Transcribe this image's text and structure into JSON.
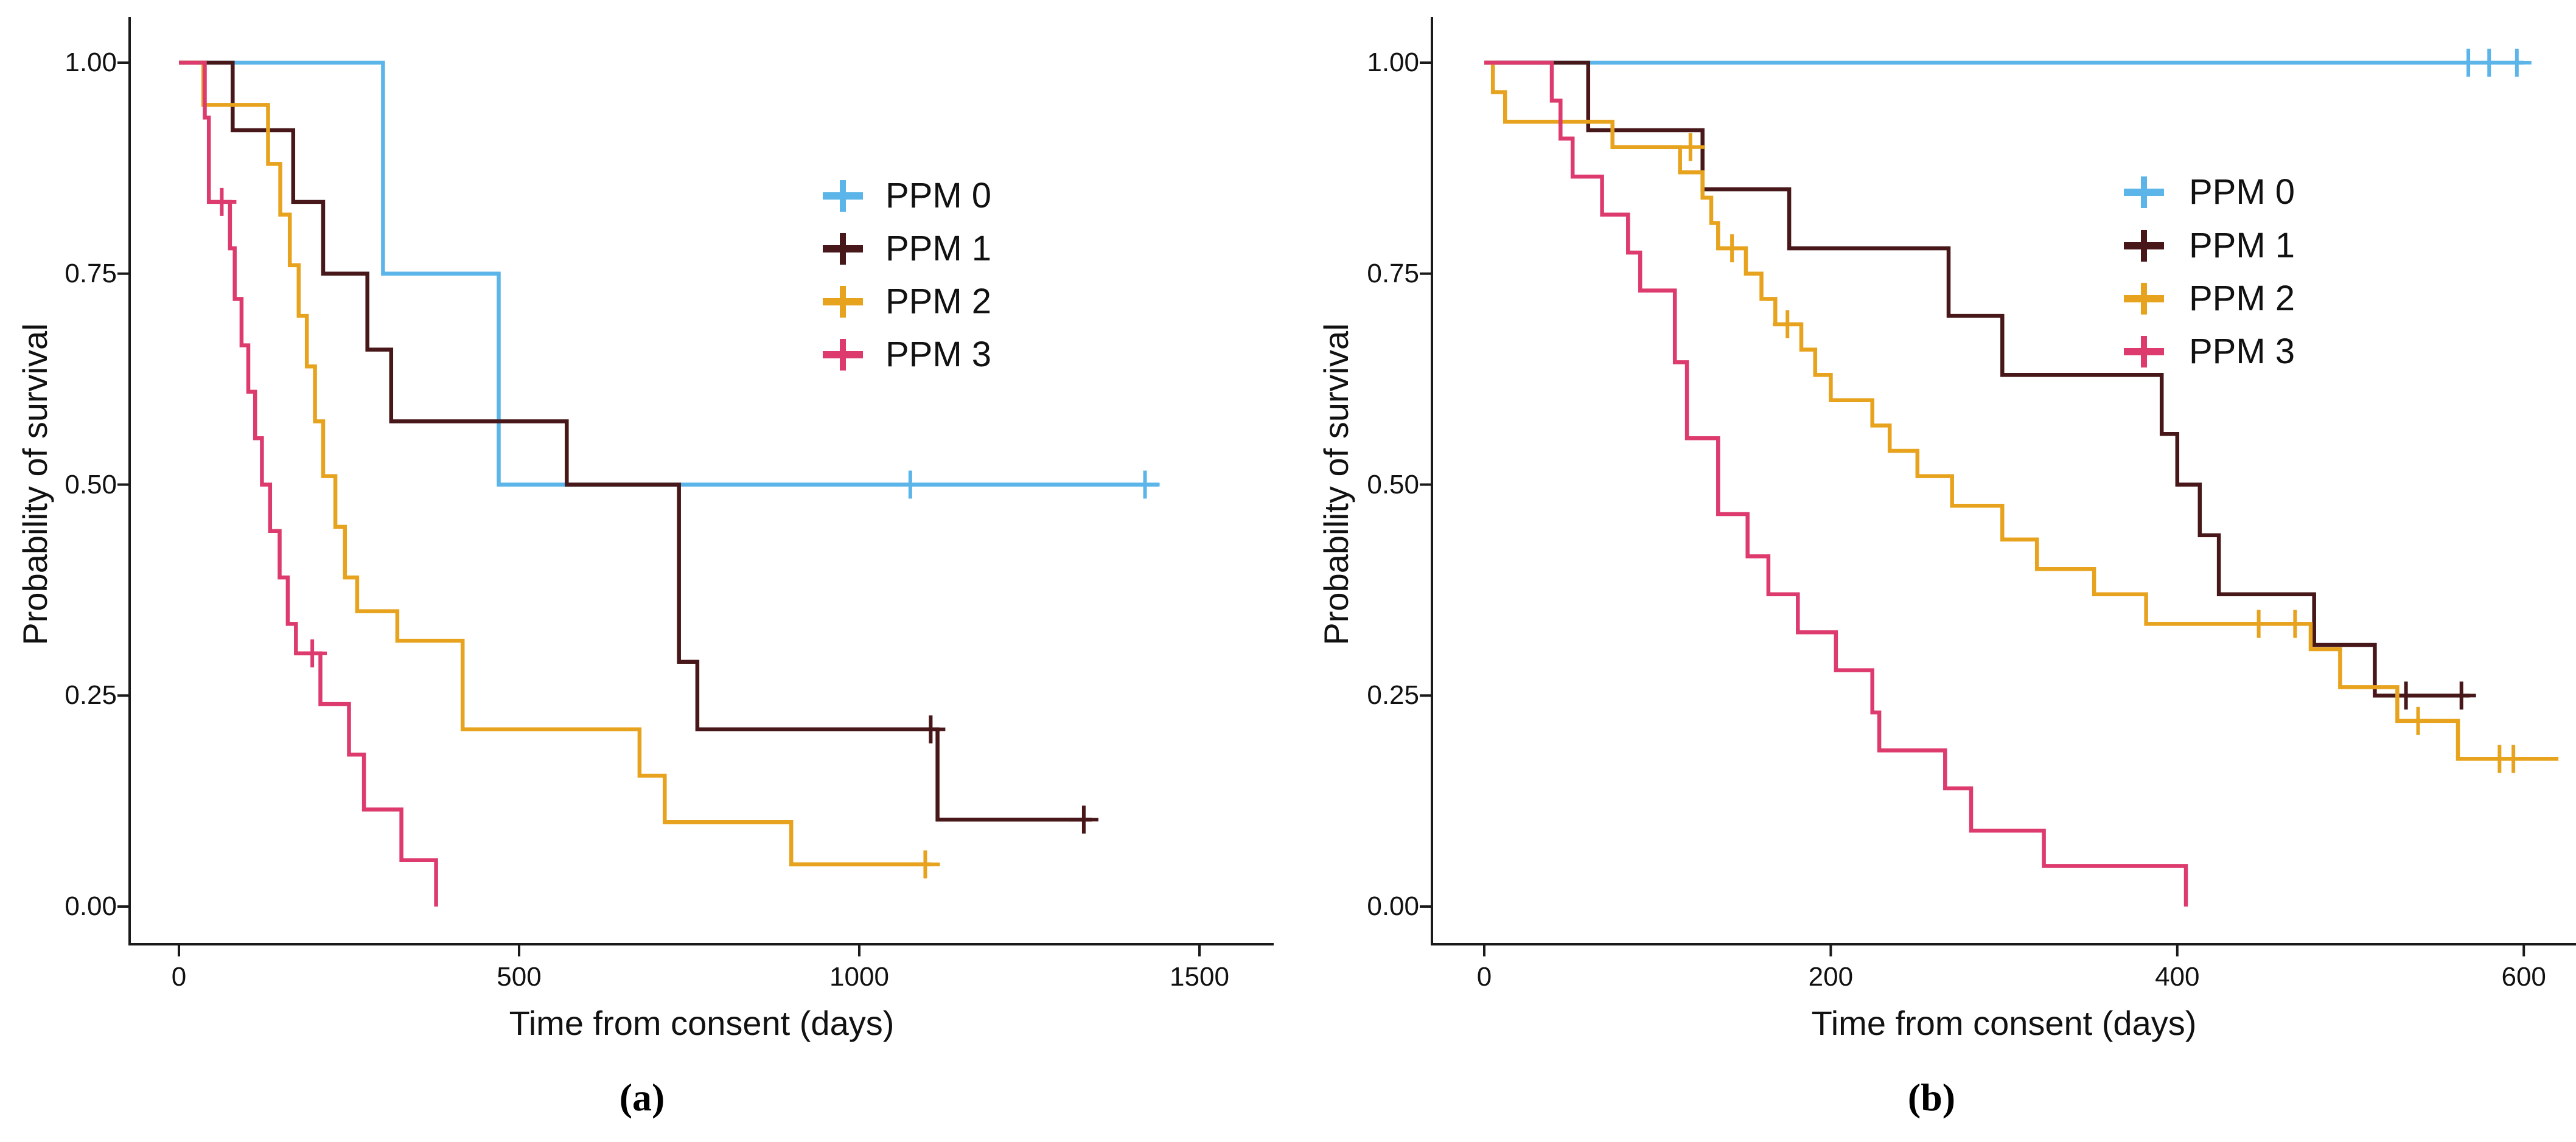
{
  "figure": {
    "captions": [
      "(a)",
      "(b)"
    ],
    "background": "#ffffff",
    "axis_color": "#1a1a1a"
  },
  "chart_data": [
    {
      "type": "line",
      "subtype": "kaplan-meier-step",
      "panel": "a",
      "xlabel": "Time from consent (days)",
      "ylabel": "Probability of survival",
      "xlim": [
        0,
        1600
      ],
      "ylim": [
        0,
        1
      ],
      "xticks": [
        0,
        500,
        1000,
        1500
      ],
      "yticks": [
        0,
        0.25,
        0.5,
        0.75,
        1
      ],
      "ytick_labels": [
        "0.00",
        "0.25",
        "0.50",
        "0.75",
        "1.00"
      ],
      "grid": false,
      "legend_position": "inside-top-right",
      "series": [
        {
          "name": "PPM 0",
          "color": "#5CB5E8",
          "steps": [
            [
              0,
              1
            ],
            [
              300,
              1
            ],
            [
              300,
              0.75
            ],
            [
              470,
              0.75
            ],
            [
              470,
              0.5
            ],
            [
              1440,
              0.5
            ]
          ],
          "censors": [
            [
              1075,
              0.5
            ],
            [
              1420,
              0.5
            ]
          ]
        },
        {
          "name": "PPM 1",
          "color": "#471719",
          "steps": [
            [
              0,
              1
            ],
            [
              79,
              1
            ],
            [
              79,
              0.92
            ],
            [
              168,
              0.92
            ],
            [
              168,
              0.835
            ],
            [
              212,
              0.835
            ],
            [
              212,
              0.75
            ],
            [
              277,
              0.75
            ],
            [
              277,
              0.66
            ],
            [
              312,
              0.66
            ],
            [
              312,
              0.575
            ],
            [
              570,
              0.575
            ],
            [
              570,
              0.5
            ],
            [
              735,
              0.5
            ],
            [
              735,
              0.29
            ],
            [
              762,
              0.29
            ],
            [
              762,
              0.21
            ],
            [
              1115,
              0.21
            ],
            [
              1115,
              0.103
            ],
            [
              1342,
              0.103
            ]
          ],
          "censors": [
            [
              1105,
              0.21
            ],
            [
              1330,
              0.103
            ]
          ]
        },
        {
          "name": "PPM 2",
          "color": "#E7A21E",
          "steps": [
            [
              0,
              1
            ],
            [
              36,
              1
            ],
            [
              36,
              0.95
            ],
            [
              131,
              0.95
            ],
            [
              131,
              0.88
            ],
            [
              149,
              0.88
            ],
            [
              149,
              0.82
            ],
            [
              163,
              0.82
            ],
            [
              163,
              0.76
            ],
            [
              176,
              0.76
            ],
            [
              176,
              0.7
            ],
            [
              188,
              0.7
            ],
            [
              188,
              0.64
            ],
            [
              200,
              0.64
            ],
            [
              200,
              0.575
            ],
            [
              212,
              0.575
            ],
            [
              212,
              0.51
            ],
            [
              230,
              0.51
            ],
            [
              230,
              0.45
            ],
            [
              244,
              0.45
            ],
            [
              244,
              0.39
            ],
            [
              262,
              0.39
            ],
            [
              262,
              0.35
            ],
            [
              321,
              0.35
            ],
            [
              321,
              0.315
            ],
            [
              417,
              0.315
            ],
            [
              417,
              0.21
            ],
            [
              677,
              0.21
            ],
            [
              677,
              0.155
            ],
            [
              714,
              0.155
            ],
            [
              714,
              0.1
            ],
            [
              900,
              0.1
            ],
            [
              900,
              0.05
            ],
            [
              1105,
              0.05
            ]
          ],
          "censors": [
            [
              1097,
              0.05
            ]
          ]
        },
        {
          "name": "PPM 3",
          "color": "#DD3A6E",
          "steps": [
            [
              0,
              1
            ],
            [
              38,
              1
            ],
            [
              38,
              0.935
            ],
            [
              44,
              0.935
            ],
            [
              44,
              0.835
            ],
            [
              75,
              0.835
            ],
            [
              75,
              0.78
            ],
            [
              82,
              0.78
            ],
            [
              82,
              0.72
            ],
            [
              92,
              0.72
            ],
            [
              92,
              0.665
            ],
            [
              102,
              0.665
            ],
            [
              102,
              0.61
            ],
            [
              112,
              0.61
            ],
            [
              112,
              0.555
            ],
            [
              122,
              0.555
            ],
            [
              122,
              0.5
            ],
            [
              134,
              0.5
            ],
            [
              134,
              0.445
            ],
            [
              148,
              0.445
            ],
            [
              148,
              0.39
            ],
            [
              160,
              0.39
            ],
            [
              160,
              0.335
            ],
            [
              172,
              0.335
            ],
            [
              172,
              0.3
            ],
            [
              208,
              0.3
            ],
            [
              208,
              0.24
            ],
            [
              250,
              0.24
            ],
            [
              250,
              0.18
            ],
            [
              272,
              0.18
            ],
            [
              272,
              0.115
            ],
            [
              327,
              0.115
            ],
            [
              327,
              0.055
            ],
            [
              378,
              0.055
            ],
            [
              378,
              0
            ]
          ],
          "censors": [
            [
              63,
              0.835
            ],
            [
              196,
              0.3
            ]
          ]
        }
      ]
    },
    {
      "type": "line",
      "subtype": "kaplan-meier-step",
      "panel": "b",
      "xlabel": "Time from consent (days)",
      "ylabel": "Probability of survival",
      "xlim": [
        0,
        640
      ],
      "ylim": [
        0,
        1
      ],
      "xticks": [
        0,
        200,
        400,
        600
      ],
      "yticks": [
        0,
        0.25,
        0.5,
        0.75,
        1
      ],
      "ytick_labels": [
        "0.00",
        "0.25",
        "0.50",
        "0.75",
        "1.00"
      ],
      "grid": false,
      "legend_position": "inside-top-right",
      "series": [
        {
          "name": "PPM 0",
          "color": "#5CB5E8",
          "steps": [
            [
              0,
              1
            ],
            [
              600,
              1
            ]
          ],
          "censors": [
            [
              568,
              1
            ],
            [
              580,
              1
            ],
            [
              596,
              1
            ]
          ]
        },
        {
          "name": "PPM 1",
          "color": "#471719",
          "steps": [
            [
              0,
              1
            ],
            [
              60,
              1
            ],
            [
              60,
              0.92
            ],
            [
              126,
              0.92
            ],
            [
              126,
              0.85
            ],
            [
              176,
              0.85
            ],
            [
              176,
              0.78
            ],
            [
              268,
              0.78
            ],
            [
              268,
              0.7
            ],
            [
              299,
              0.7
            ],
            [
              299,
              0.63
            ],
            [
              391,
              0.63
            ],
            [
              391,
              0.56
            ],
            [
              400,
              0.56
            ],
            [
              400,
              0.5
            ],
            [
              413,
              0.5
            ],
            [
              413,
              0.44
            ],
            [
              424,
              0.44
            ],
            [
              424,
              0.37
            ],
            [
              479,
              0.37
            ],
            [
              479,
              0.31
            ],
            [
              514,
              0.31
            ],
            [
              514,
              0.25
            ],
            [
              569,
              0.25
            ]
          ],
          "censors": [
            [
              532,
              0.25
            ],
            [
              564,
              0.25
            ]
          ]
        },
        {
          "name": "PPM 2",
          "color": "#E7A21E",
          "steps": [
            [
              0,
              1
            ],
            [
              5,
              1
            ],
            [
              5,
              0.965
            ],
            [
              12,
              0.965
            ],
            [
              12,
              0.93
            ],
            [
              74,
              0.93
            ],
            [
              74,
              0.9
            ],
            [
              113,
              0.9
            ],
            [
              113,
              0.87
            ],
            [
              126,
              0.87
            ],
            [
              126,
              0.84
            ],
            [
              131,
              0.84
            ],
            [
              131,
              0.81
            ],
            [
              135,
              0.81
            ],
            [
              135,
              0.78
            ],
            [
              151,
              0.78
            ],
            [
              151,
              0.75
            ],
            [
              160,
              0.75
            ],
            [
              160,
              0.72
            ],
            [
              168,
              0.72
            ],
            [
              168,
              0.69
            ],
            [
              183,
              0.69
            ],
            [
              183,
              0.66
            ],
            [
              191,
              0.66
            ],
            [
              191,
              0.63
            ],
            [
              200,
              0.63
            ],
            [
              200,
              0.6
            ],
            [
              224,
              0.6
            ],
            [
              224,
              0.57
            ],
            [
              234,
              0.57
            ],
            [
              234,
              0.54
            ],
            [
              250,
              0.54
            ],
            [
              250,
              0.51
            ],
            [
              270,
              0.51
            ],
            [
              270,
              0.475
            ],
            [
              299,
              0.475
            ],
            [
              299,
              0.435
            ],
            [
              319,
              0.435
            ],
            [
              319,
              0.4
            ],
            [
              352,
              0.4
            ],
            [
              352,
              0.37
            ],
            [
              382,
              0.37
            ],
            [
              382,
              0.335
            ],
            [
              477,
              0.335
            ],
            [
              477,
              0.305
            ],
            [
              494,
              0.305
            ],
            [
              494,
              0.26
            ],
            [
              527,
              0.26
            ],
            [
              527,
              0.22
            ],
            [
              562,
              0.22
            ],
            [
              562,
              0.175
            ],
            [
              620,
              0.175
            ]
          ],
          "censors": [
            [
              119,
              0.9
            ],
            [
              143,
              0.78
            ],
            [
              175,
              0.69
            ],
            [
              447,
              0.335
            ],
            [
              468,
              0.335
            ],
            [
              539,
              0.22
            ],
            [
              586,
              0.175
            ],
            [
              594,
              0.175
            ]
          ]
        },
        {
          "name": "PPM 3",
          "color": "#DD3A6E",
          "steps": [
            [
              0,
              1
            ],
            [
              39,
              1
            ],
            [
              39,
              0.955
            ],
            [
              44,
              0.955
            ],
            [
              44,
              0.91
            ],
            [
              51,
              0.91
            ],
            [
              51,
              0.865
            ],
            [
              68,
              0.865
            ],
            [
              68,
              0.82
            ],
            [
              83,
              0.82
            ],
            [
              83,
              0.775
            ],
            [
              90,
              0.775
            ],
            [
              90,
              0.73
            ],
            [
              110,
              0.73
            ],
            [
              110,
              0.645
            ],
            [
              117,
              0.645
            ],
            [
              117,
              0.555
            ],
            [
              135,
              0.555
            ],
            [
              135,
              0.465
            ],
            [
              152,
              0.465
            ],
            [
              152,
              0.415
            ],
            [
              164,
              0.415
            ],
            [
              164,
              0.37
            ],
            [
              181,
              0.37
            ],
            [
              181,
              0.325
            ],
            [
              203,
              0.325
            ],
            [
              203,
              0.28
            ],
            [
              224,
              0.28
            ],
            [
              224,
              0.23
            ],
            [
              228,
              0.23
            ],
            [
              228,
              0.185
            ],
            [
              266,
              0.185
            ],
            [
              266,
              0.14
            ],
            [
              281,
              0.14
            ],
            [
              281,
              0.09
            ],
            [
              323,
              0.09
            ],
            [
              323,
              0.048
            ],
            [
              405,
              0.048
            ],
            [
              405,
              0
            ]
          ],
          "censors": []
        }
      ]
    }
  ]
}
